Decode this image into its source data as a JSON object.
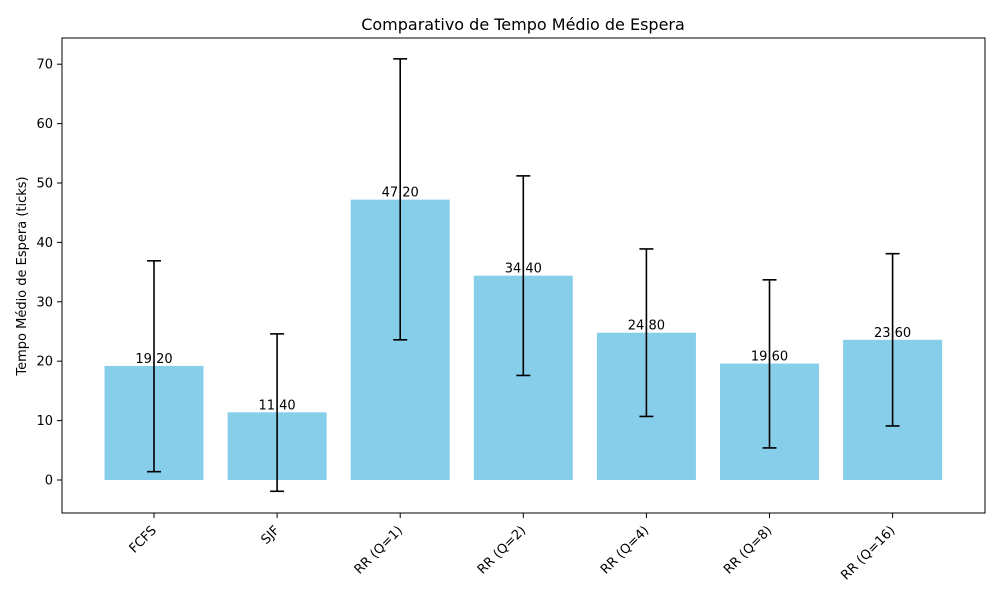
{
  "chart_data": {
    "type": "bar",
    "title": "Comparativo de Tempo Médio de Espera",
    "xlabel": "",
    "ylabel": "Tempo Médio de Espera (ticks)",
    "categories": [
      "FCFS",
      "SJF",
      "RR (Q=1)",
      "RR (Q=2)",
      "RR (Q=4)",
      "RR (Q=8)",
      "RR (Q=16)"
    ],
    "values": [
      19.2,
      11.4,
      47.2,
      34.4,
      24.8,
      19.6,
      23.6
    ],
    "data_labels": [
      "19.20",
      "11.40",
      "47.20",
      "34.40",
      "24.80",
      "19.60",
      "23.60"
    ],
    "error_low": [
      1.4,
      -1.9,
      23.6,
      17.6,
      10.7,
      5.4,
      9.1
    ],
    "error_high": [
      36.9,
      24.6,
      70.9,
      51.2,
      38.9,
      33.7,
      38.1
    ],
    "yticks": [
      0,
      10,
      20,
      30,
      40,
      50,
      60,
      70
    ],
    "ylim": [
      -5.5,
      74.5
    ],
    "grid": false,
    "colors": {
      "bar": "#87CEEB",
      "error": "#000000",
      "axis": "#000000"
    }
  }
}
